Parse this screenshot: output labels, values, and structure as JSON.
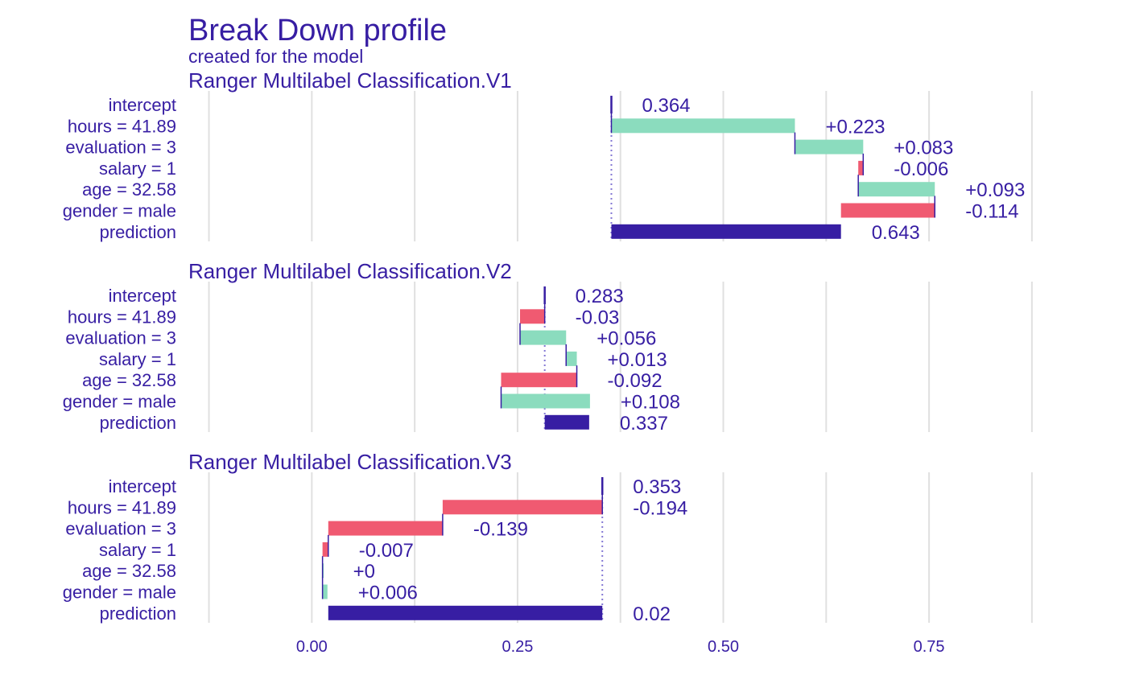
{
  "chart_data": {
    "type": "bar",
    "title": "Break Down profile",
    "subtitle": "created for the  model",
    "categories": [
      "intercept",
      "hours = 41.89",
      "evaluation = 3",
      "salary = 1",
      "age = 32.58",
      "gender = male",
      "prediction"
    ],
    "xlim": [
      -0.15,
      0.88
    ],
    "x_ticks": [
      0,
      0.25,
      0.5,
      0.75
    ],
    "x_tick_labels": [
      "0.00",
      "0.25",
      "0.50",
      "0.75"
    ],
    "grid": true,
    "colors": {
      "positive": "#8bdcbe",
      "negative": "#f05a71",
      "prediction": "#371ea3",
      "text": "#371ea3",
      "grid": "#e0e0e0"
    },
    "panels": [
      {
        "name": "Ranger Multilabel Classification.V1",
        "intercept": 0.364,
        "prediction": 0.643,
        "contributions": [
          0.223,
          0.083,
          -0.006,
          0.093,
          -0.114
        ],
        "labels": [
          "0.364",
          "+0.223",
          "+0.083",
          "-0.006",
          "+0.093",
          "-0.114",
          "0.643"
        ]
      },
      {
        "name": "Ranger Multilabel Classification.V2",
        "intercept": 0.283,
        "prediction": 0.337,
        "contributions": [
          -0.03,
          0.056,
          0.013,
          -0.092,
          0.108
        ],
        "labels": [
          "0.283",
          "-0.03",
          "+0.056",
          "+0.013",
          "-0.092",
          "+0.108",
          "0.337"
        ]
      },
      {
        "name": "Ranger Multilabel Classification.V3",
        "intercept": 0.353,
        "prediction": 0.02,
        "contributions": [
          -0.194,
          -0.139,
          -0.007,
          0,
          0.006
        ],
        "labels": [
          "0.353",
          "-0.194",
          "-0.139",
          "-0.007",
          "+0",
          "+0.006",
          "0.02"
        ]
      }
    ]
  }
}
